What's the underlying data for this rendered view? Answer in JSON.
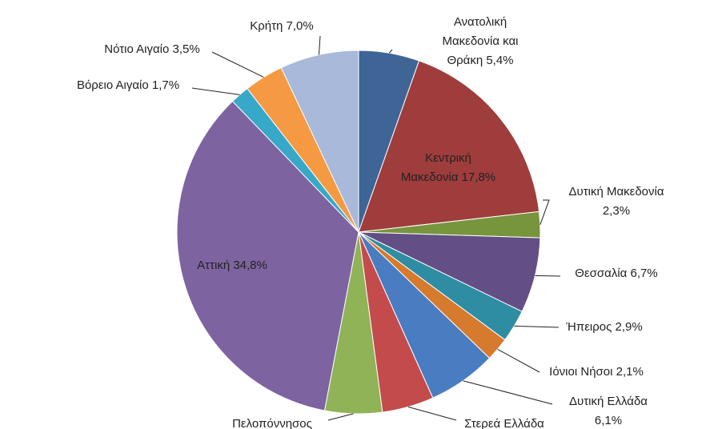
{
  "chart_data": {
    "type": "pie",
    "categories": [
      "Ανατολική\nΜακεδονία και\nΘράκη 5,4%",
      "Κεντρική\nΜακεδονία 17,8%",
      "Δυτική Μακεδονία\n2,3%",
      "Θεσσαλία 6,7%",
      "Ήπειρος 2,9%",
      "Ιόνιοι Νήσοι 2,1%",
      "Δυτική Ελλάδα\n6,1%",
      "Στερεά Ελλάδα",
      "Πελοπόννησος",
      "Αττική 34,8%",
      "Βόρειο Αιγαίο 1,7%",
      "Νότιο Αιγαίο 3,5%",
      "Κρήτη 7,0%"
    ],
    "values": [
      5.4,
      17.8,
      2.3,
      6.7,
      2.9,
      2.1,
      6.1,
      4.6,
      5.1,
      34.8,
      1.7,
      3.5,
      7.0
    ],
    "colors": [
      "#3f6597",
      "#9e3d3b",
      "#77953d",
      "#634e85",
      "#2e8da3",
      "#d67a2e",
      "#4a7cc2",
      "#c44b4b",
      "#8fb356",
      "#7e63a1",
      "#38a8c8",
      "#f59a42",
      "#a8b9d9"
    ]
  }
}
